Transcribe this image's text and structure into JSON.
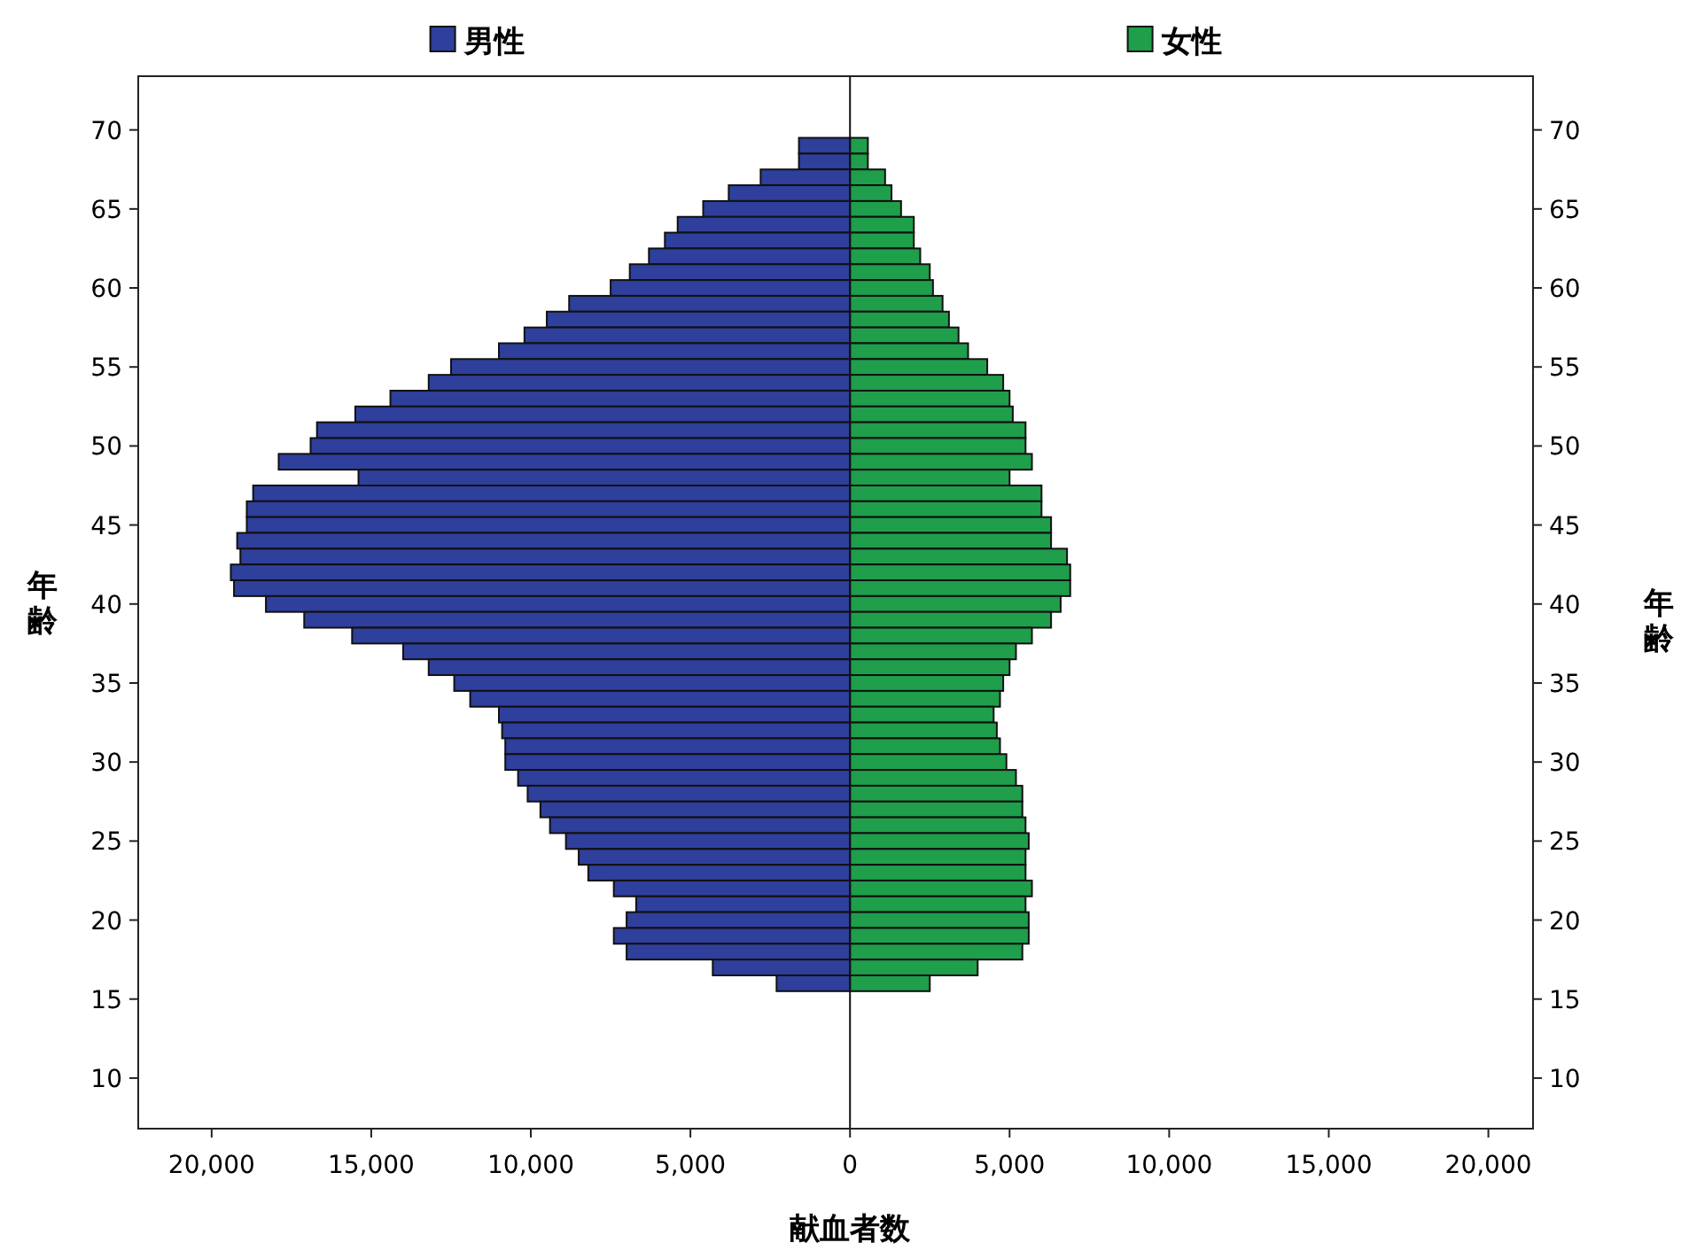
{
  "chart_data": {
    "type": "bar",
    "orientation": "horizontal",
    "xlabel": "献血者数",
    "ylabel": "年齢",
    "y2label": "年齢",
    "x": [
      69,
      68,
      67,
      66,
      65,
      64,
      63,
      62,
      61,
      60,
      59,
      58,
      57,
      56,
      55,
      54,
      53,
      52,
      51,
      50,
      49,
      48,
      47,
      46,
      45,
      44,
      43,
      42,
      41,
      40,
      39,
      38,
      37,
      36,
      35,
      34,
      33,
      32,
      31,
      30,
      29,
      28,
      27,
      26,
      25,
      24,
      23,
      22,
      21,
      20,
      19,
      18,
      17,
      16
    ],
    "series": [
      {
        "name": "男性",
        "color": "#2f3f9c",
        "values": [
          -1600,
          -1600,
          -2800,
          -3800,
          -4600,
          -5400,
          -5800,
          -6300,
          -6900,
          -7500,
          -8800,
          -9500,
          -10200,
          -11000,
          -12500,
          -13200,
          -14400,
          -15500,
          -16700,
          -16900,
          -17900,
          -15400,
          -18700,
          -18900,
          -18900,
          -19200,
          -19100,
          -19400,
          -19300,
          -18300,
          -17100,
          -15600,
          -14000,
          -13200,
          -12400,
          -11900,
          -11000,
          -10900,
          -10800,
          -10800,
          -10400,
          -10100,
          -9700,
          -9400,
          -8900,
          -8500,
          -8200,
          -7400,
          -6700,
          -7000,
          -7400,
          -7000,
          -4300,
          -2300
        ]
      },
      {
        "name": "女性",
        "color": "#1f9e4b",
        "values": [
          560,
          560,
          1100,
          1300,
          1600,
          2000,
          2000,
          2200,
          2500,
          2600,
          2900,
          3100,
          3400,
          3700,
          4300,
          4800,
          5000,
          5100,
          5500,
          5500,
          5700,
          5000,
          6000,
          6000,
          6300,
          6300,
          6800,
          6900,
          6900,
          6600,
          6300,
          5700,
          5200,
          5000,
          4800,
          4700,
          4500,
          4600,
          4700,
          4900,
          5200,
          5400,
          5400,
          5500,
          5600,
          5500,
          5500,
          5700,
          5500,
          5600,
          5600,
          5400,
          4000,
          2500
        ]
      }
    ],
    "xlim": [
      -22300,
      21400
    ],
    "xticks": [
      {
        "value": -20000,
        "label": "20,000"
      },
      {
        "value": -15000,
        "label": "15,000"
      },
      {
        "value": -10000,
        "label": "10,000"
      },
      {
        "value": -5000,
        "label": "5,000"
      },
      0,
      {
        "value": 5000,
        "label": "5,000"
      },
      {
        "value": 10000,
        "label": "10,000"
      },
      {
        "value": 15000,
        "label": "15,000"
      },
      {
        "value": 20000,
        "label": "20,000"
      }
    ],
    "ylim": [
      6.8,
      73.4
    ],
    "yticks": [
      10,
      15,
      20,
      25,
      30,
      35,
      40,
      45,
      50,
      55,
      60,
      65,
      70
    ],
    "y2lim": [
      6.8,
      73.4
    ],
    "y2ticks": [
      10,
      15,
      20,
      25,
      30,
      35,
      40,
      45,
      50,
      55,
      60,
      65,
      70
    ],
    "stacked": true,
    "legend": "top",
    "ref_lines": [
      {
        "axis": "x",
        "value": 0
      }
    ]
  }
}
